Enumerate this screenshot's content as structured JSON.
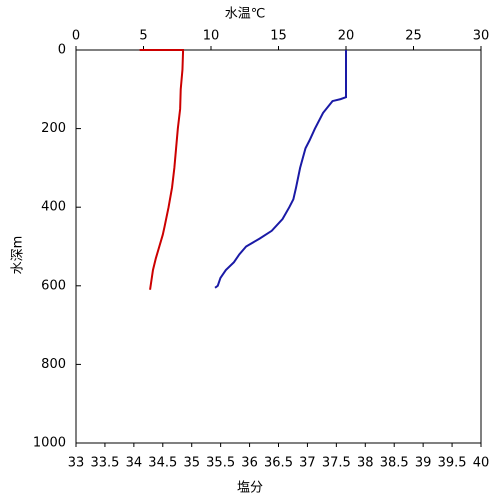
{
  "chart_data": {
    "type": "profile",
    "x2label": "水温℃",
    "xlabel": "塩分",
    "ylabel": "水深m",
    "xlim": [
      33,
      40
    ],
    "xticks": [
      33,
      33.5,
      34,
      34.5,
      35,
      35.5,
      36,
      36.5,
      37,
      37.5,
      38,
      38.5,
      39,
      39.5,
      40
    ],
    "x2lim": [
      0,
      30
    ],
    "x2ticks": [
      0,
      5,
      10,
      15,
      20,
      25,
      30
    ],
    "ylim": [
      0,
      1000
    ],
    "yticks": [
      0,
      200,
      400,
      600,
      800,
      1000
    ],
    "y_inverted": true,
    "x2label_color": "#1a1aa6",
    "xlabel_color": "#cc0000",
    "series": [
      {
        "axis": "x2",
        "color": "#1a1aa6",
        "x": [
          20.0,
          20.0,
          19.6,
          19.0,
          18.3,
          17.7,
          17.3,
          17.0,
          16.6,
          16.3,
          16.1,
          15.8,
          15.3,
          14.5,
          13.6,
          12.6,
          12.1,
          11.7,
          11.1,
          10.7,
          10.5,
          10.3
        ],
        "y": [
          0,
          120,
          125,
          130,
          160,
          200,
          230,
          250,
          300,
          350,
          380,
          400,
          430,
          460,
          480,
          500,
          520,
          540,
          560,
          580,
          600,
          605
        ]
      },
      {
        "axis": "x",
        "color": "#cc0000",
        "x": [
          34.1,
          34.85,
          34.85,
          34.84,
          34.81,
          34.8,
          34.76,
          34.73,
          34.7,
          34.66,
          34.6,
          34.53,
          34.5,
          34.44,
          34.38,
          34.33,
          34.3,
          34.28
        ],
        "y": [
          0,
          0,
          5,
          50,
          100,
          150,
          200,
          250,
          300,
          350,
          400,
          450,
          470,
          500,
          530,
          560,
          590,
          610
        ]
      }
    ]
  }
}
